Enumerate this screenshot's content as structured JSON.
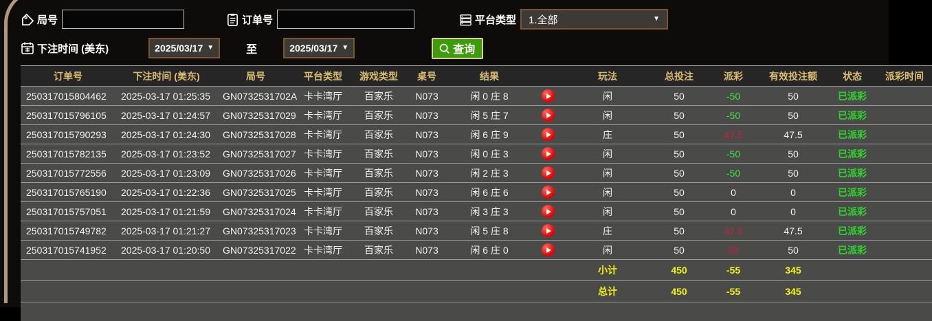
{
  "filters": {
    "game_number_label": "局号",
    "game_number_value": "",
    "order_number_label": "订单号",
    "order_number_value": "",
    "platform_label": "平台类型",
    "platform_selected": "1.全部",
    "bet_time_label": "下注时间 (美东)",
    "date_from": "2025/03/17",
    "date_to": "2025/03/17",
    "to_label": "至",
    "query_label": "查询",
    "caret": "▼"
  },
  "table": {
    "columns": [
      "订单号",
      "下注时间 (美东)",
      "局号",
      "平台类型",
      "游戏类型",
      "桌号",
      "结果",
      "",
      "玩法",
      "总投注",
      "派彩",
      "有效投注额",
      "状态",
      "派彩时间"
    ],
    "rows": [
      {
        "order": "250317015804462",
        "time": "2025-03-17 01:25:35",
        "game": "GN0732531702A",
        "platform": "卡卡湾厅",
        "game_type": "百家乐",
        "table_no": "N073",
        "result": "闲 0 庄 8",
        "play": "闲",
        "total_bet": "50",
        "payout": "-50",
        "payout_color": "green",
        "valid_bet": "50",
        "status": "已派彩"
      },
      {
        "order": "250317015796105",
        "time": "2025-03-17 01:24:57",
        "game": "GN07325317029",
        "platform": "卡卡湾厅",
        "game_type": "百家乐",
        "table_no": "N073",
        "result": "闲 5 庄 7",
        "play": "闲",
        "total_bet": "50",
        "payout": "-50",
        "payout_color": "green",
        "valid_bet": "50",
        "status": "已派彩"
      },
      {
        "order": "250317015790293",
        "time": "2025-03-17 01:24:30",
        "game": "GN07325317028",
        "platform": "卡卡湾厅",
        "game_type": "百家乐",
        "table_no": "N073",
        "result": "闲 6 庄 9",
        "play": "庄",
        "total_bet": "50",
        "payout": "47.5",
        "payout_color": "red",
        "valid_bet": "47.5",
        "status": "已派彩"
      },
      {
        "order": "250317015782135",
        "time": "2025-03-17 01:23:52",
        "game": "GN07325317027",
        "platform": "卡卡湾厅",
        "game_type": "百家乐",
        "table_no": "N073",
        "result": "闲 0 庄 3",
        "play": "闲",
        "total_bet": "50",
        "payout": "-50",
        "payout_color": "green",
        "valid_bet": "50",
        "status": "已派彩"
      },
      {
        "order": "250317015772556",
        "time": "2025-03-17 01:23:09",
        "game": "GN07325317026",
        "platform": "卡卡湾厅",
        "game_type": "百家乐",
        "table_no": "N073",
        "result": "闲 2 庄 3",
        "play": "闲",
        "total_bet": "50",
        "payout": "-50",
        "payout_color": "green",
        "valid_bet": "50",
        "status": "已派彩"
      },
      {
        "order": "250317015765190",
        "time": "2025-03-17 01:22:36",
        "game": "GN07325317025",
        "platform": "卡卡湾厅",
        "game_type": "百家乐",
        "table_no": "N073",
        "result": "闲 6 庄 6",
        "play": "闲",
        "total_bet": "50",
        "payout": "0",
        "payout_color": "white",
        "valid_bet": "0",
        "status": "已派彩"
      },
      {
        "order": "250317015757051",
        "time": "2025-03-17 01:21:59",
        "game": "GN07325317024",
        "platform": "卡卡湾厅",
        "game_type": "百家乐",
        "table_no": "N073",
        "result": "闲 3 庄 3",
        "play": "闲",
        "total_bet": "50",
        "payout": "0",
        "payout_color": "white",
        "valid_bet": "0",
        "status": "已派彩"
      },
      {
        "order": "250317015749782",
        "time": "2025-03-17 01:21:27",
        "game": "GN07325317023",
        "platform": "卡卡湾厅",
        "game_type": "百家乐",
        "table_no": "N073",
        "result": "闲 5 庄 8",
        "play": "庄",
        "total_bet": "50",
        "payout": "47.5",
        "payout_color": "red",
        "valid_bet": "47.5",
        "status": "已派彩"
      },
      {
        "order": "250317015741952",
        "time": "2025-03-17 01:20:50",
        "game": "GN07325317022",
        "platform": "卡卡湾厅",
        "game_type": "百家乐",
        "table_no": "N073",
        "result": "闲 6 庄 0",
        "play": "闲",
        "total_bet": "50",
        "payout": "50",
        "payout_color": "red",
        "valid_bet": "50",
        "status": "已派彩"
      }
    ],
    "summary_rows": [
      {
        "label": "小计",
        "total_bet": "450",
        "payout": "-55",
        "valid_bet": "345"
      },
      {
        "label": "总计",
        "total_bet": "450",
        "payout": "-55",
        "valid_bet": "345"
      }
    ]
  },
  "colors": {
    "accent_gold": "#dcbd72",
    "frame_tan": "#b1977b",
    "win_red": "#c7213a",
    "loss_green": "#3ce43c",
    "summary_yellow": "#f5f216",
    "query_green": "#3e9c0b"
  }
}
